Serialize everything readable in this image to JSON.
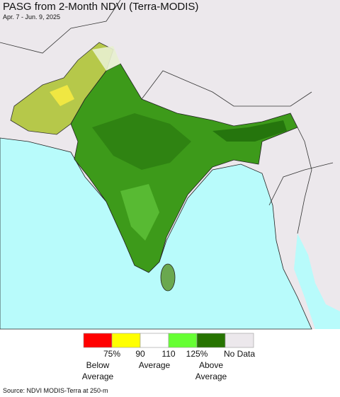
{
  "header": {
    "title": "PASG from 2-Month NDVI (Terra-MODIS)",
    "date": "Apr. 7 - Jun. 9, 2025"
  },
  "legend": {
    "colors": [
      "#ff0000",
      "#ffff00",
      "#ffffff",
      "#66ff33",
      "#267300",
      "#ece8ec"
    ],
    "tick_labels": [
      "75%",
      "90",
      "110",
      "125%"
    ],
    "no_data": "No Data",
    "groups": [
      {
        "lines": [
          "Below",
          "Average"
        ]
      },
      {
        "lines": [
          "Average"
        ]
      },
      {
        "lines": [
          "Above",
          "Average"
        ]
      }
    ]
  },
  "source": "Source: NDVI MODIS-Terra at 250-m"
}
